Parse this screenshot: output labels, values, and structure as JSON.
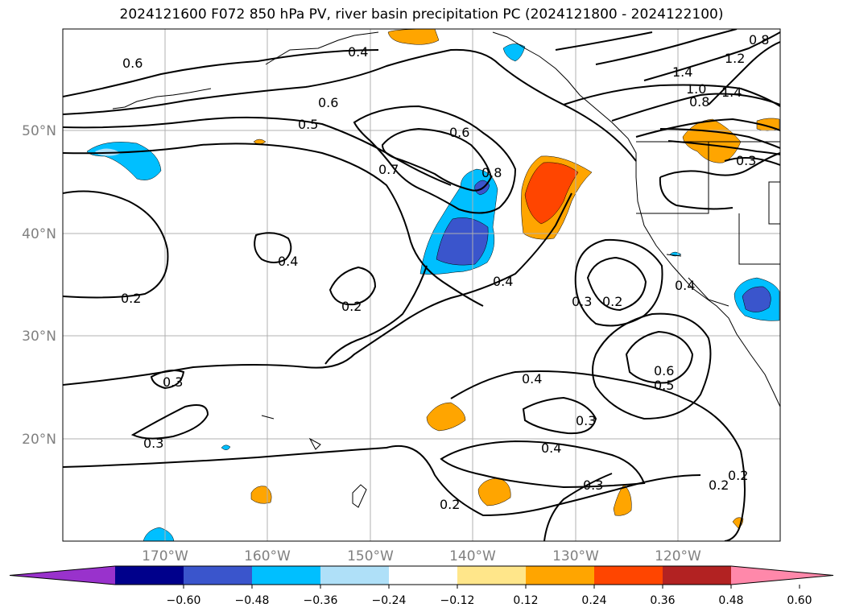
{
  "title": "2024121600 F072 850 hPa PV, river basin precipitation PC (2024121800 - 2024122100)",
  "lat_labels": [
    "50°N",
    "40°N",
    "30°N",
    "20°N"
  ],
  "lon_labels": [
    "170°W",
    "160°W",
    "150°W",
    "140°W",
    "130°W",
    "120°W"
  ],
  "contour_labels": [
    "0.6",
    "0.4",
    "0.6",
    "0.5",
    "0.6",
    "0.7",
    "0.8",
    "1.4",
    "1.0",
    "0.8",
    "1.2",
    "1.4",
    "0.8",
    "0.3",
    "0.2",
    "0.4",
    "0.2",
    "0.4",
    "0.2",
    "0.4",
    "0.3",
    "0.6",
    "0.5",
    "0.4",
    "0.3",
    "0.3",
    "0.4",
    "0.3",
    "0.2",
    "0.3",
    "0.2",
    "0.2"
  ],
  "colorbar": {
    "tick_labels": [
      "−0.60",
      "−0.48",
      "−0.36",
      "−0.24",
      "−0.12",
      "0.12",
      "0.24",
      "0.36",
      "0.48",
      "0.60"
    ],
    "colors": [
      "#9932cc",
      "#00008b",
      "#3a55cc",
      "#00bfff",
      "#afe0f8",
      "#ffffff",
      "#ffe68a",
      "#ffa500",
      "#ff4500",
      "#b22222",
      "#ff88aa"
    ]
  },
  "colors": {
    "grid": "#b0b0b0",
    "contour": "#000000",
    "tick_label": "#808080"
  }
}
